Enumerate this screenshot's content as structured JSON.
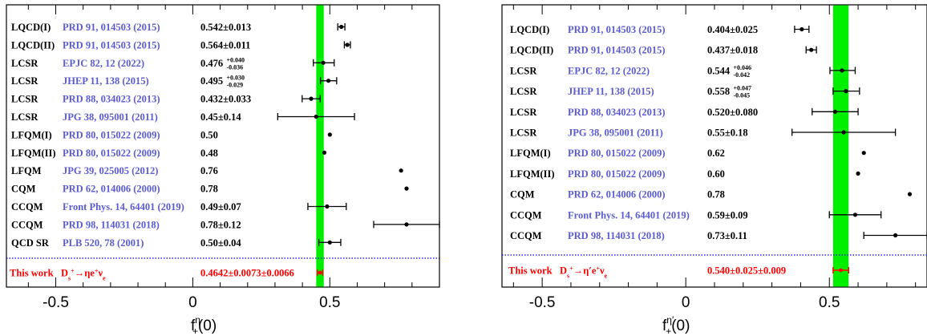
{
  "chart_data": [
    {
      "type": "scatter",
      "xlim": [
        -0.68,
        0.9
      ],
      "xticks": [
        "-0.5",
        "0",
        "0.5"
      ],
      "xlabel": {
        "base": "f",
        "sub": "+",
        "sup": "η",
        "arg": "(0)"
      },
      "band": {
        "low": 0.4505,
        "high": 0.4779,
        "color": "#00ee00"
      },
      "colors": {
        "reference": "#5b5bd6",
        "this_work": "#ff0000",
        "band": "#00ee00",
        "separator": "#0000ff"
      },
      "rows": [
        {
          "model": "LQCD(I)",
          "ref": "PRD 91, 014503 (2015)",
          "value": 0.542,
          "lo": 0.013,
          "hi": 0.013,
          "text": "0.542±0.013"
        },
        {
          "model": "LQCD(II)",
          "ref": "PRD 91, 014503 (2015)",
          "value": 0.564,
          "lo": 0.011,
          "hi": 0.011,
          "text": "0.564±0.011"
        },
        {
          "model": "LCSR",
          "ref": "EPJC 82, 12 (2022)",
          "value": 0.476,
          "lo": 0.036,
          "hi": 0.04,
          "main": "0.476",
          "up": "+0.040",
          "down": "-0.036"
        },
        {
          "model": "LCSR",
          "ref": "JHEP 11, 138 (2015)",
          "value": 0.495,
          "lo": 0.029,
          "hi": 0.03,
          "main": "0.495",
          "up": "+0.030",
          "down": "-0.029"
        },
        {
          "model": "LCSR",
          "ref": "PRD 88, 034023 (2013)",
          "value": 0.432,
          "lo": 0.033,
          "hi": 0.033,
          "text": "0.432±0.033"
        },
        {
          "model": "LCSR",
          "ref": "JPG 38, 095001 (2011)",
          "value": 0.45,
          "lo": 0.14,
          "hi": 0.14,
          "text": "0.45±0.14"
        },
        {
          "model": "LFQM(I)",
          "ref": "PRD 80, 015022 (2009)",
          "value": 0.5,
          "text": "0.50"
        },
        {
          "model": "LFQM(II)",
          "ref": "PRD 80, 015022 (2009)",
          "value": 0.48,
          "text": "0.48"
        },
        {
          "model": "LFQM",
          "ref": "JPG 39, 025005 (2012)",
          "value": 0.76,
          "text": "0.76"
        },
        {
          "model": "CQM",
          "ref": "PRD 62, 014006 (2000)",
          "value": 0.78,
          "text": "0.78"
        },
        {
          "model": "CCQM",
          "ref": "Front Phys. 14, 64401 (2019)",
          "value": 0.49,
          "lo": 0.07,
          "hi": 0.07,
          "text": "0.49±0.07"
        },
        {
          "model": "CCQM",
          "ref": "PRD 98, 114031 (2018)",
          "value": 0.78,
          "lo": 0.12,
          "hi": 0.12,
          "text": "0.78±0.12"
        },
        {
          "model": "QCD SR",
          "ref": "PLB 520, 78 (2001)",
          "value": 0.5,
          "lo": 0.04,
          "hi": 0.04,
          "text": "0.50±0.04"
        }
      ],
      "this_work": {
        "label": "This work",
        "process": "D_s^+→ηe^+ν_e",
        "value": 0.4642,
        "err": 0.0098,
        "text": "0.4642±0.0073±0.0066"
      }
    },
    {
      "type": "scatter",
      "xlim": [
        -0.64,
        0.84
      ],
      "xticks": [
        "-0.5",
        "0",
        "0.5"
      ],
      "xlabel": {
        "base": "f",
        "sub": "+",
        "sup": "η′",
        "arg": "(0)"
      },
      "band": {
        "low": 0.513,
        "high": 0.567,
        "color": "#00ee00"
      },
      "rows": [
        {
          "model": "LQCD(I)",
          "ref": "PRD 91, 014503 (2015)",
          "value": 0.404,
          "lo": 0.025,
          "hi": 0.025,
          "text": "0.404±0.025"
        },
        {
          "model": "LQCD(II)",
          "ref": "PRD 91, 014503 (2015)",
          "value": 0.437,
          "lo": 0.018,
          "hi": 0.018,
          "text": "0.437±0.018"
        },
        {
          "model": "LCSR",
          "ref": "EPJC 82, 12 (2022)",
          "value": 0.544,
          "lo": 0.042,
          "hi": 0.046,
          "main": "0.544",
          "up": "+0.046",
          "down": "-0.042"
        },
        {
          "model": "LCSR",
          "ref": "JHEP 11, 138 (2015)",
          "value": 0.558,
          "lo": 0.045,
          "hi": 0.047,
          "main": "0.558",
          "up": "+0.047",
          "down": "-0.045"
        },
        {
          "model": "LCSR",
          "ref": "PRD 88, 034023 (2013)",
          "value": 0.52,
          "lo": 0.08,
          "hi": 0.08,
          "text": "0.520±0.080"
        },
        {
          "model": "LCSR",
          "ref": "JPG 38, 095001 (2011)",
          "value": 0.55,
          "lo": 0.18,
          "hi": 0.18,
          "text": "0.55±0.18"
        },
        {
          "model": "LFQM(I)",
          "ref": "PRD 80, 015022 (2009)",
          "value": 0.62,
          "text": "0.62"
        },
        {
          "model": "LFQM(II)",
          "ref": "PRD 80, 015022 (2009)",
          "value": 0.6,
          "text": "0.60"
        },
        {
          "model": "CQM",
          "ref": "PRD 62, 014006 (2000)",
          "value": 0.78,
          "text": "0.78"
        },
        {
          "model": "CCQM",
          "ref": "Front Phys. 14, 64401 (2019)",
          "value": 0.59,
          "lo": 0.09,
          "hi": 0.09,
          "text": "0.59±0.09"
        },
        {
          "model": "CCQM",
          "ref": "PRD 98, 114031 (2018)",
          "value": 0.73,
          "lo": 0.11,
          "hi": 0.11,
          "text": "0.73±0.11"
        }
      ],
      "this_work": {
        "label": "This work",
        "process": "D_s^+→η′e^+ν_e",
        "value": 0.54,
        "err": 0.027,
        "text": "0.540±0.025±0.009"
      }
    }
  ]
}
